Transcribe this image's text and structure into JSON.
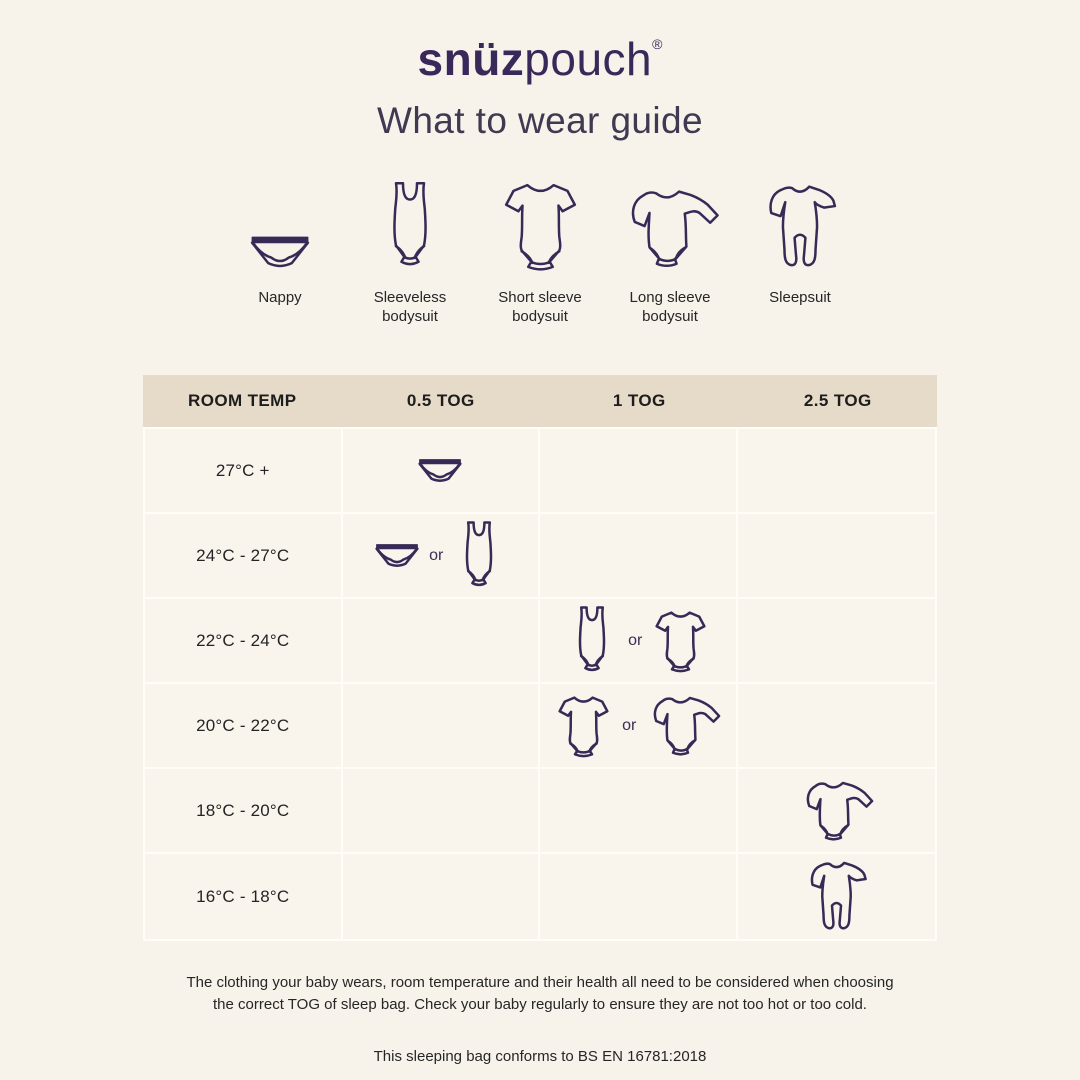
{
  "colors": {
    "page_background": "#f7f2ea",
    "accent_purple": "#372a56",
    "header_bar_background": "#e6dac8",
    "cell_background": "#f9f4ec",
    "grid_line": "#fffdf6",
    "text_dark": "#262626"
  },
  "logo": {
    "bold": "snüz",
    "regular": "pouch",
    "registered": "®"
  },
  "header": {
    "title": "What to wear guide"
  },
  "legend": {
    "items": [
      {
        "icon": "nappy",
        "label": "Nappy"
      },
      {
        "icon": "sleeveless-bodysuit",
        "label": "Sleeveless bodysuit"
      },
      {
        "icon": "short-sleeve-bodysuit",
        "label": "Short sleeve bodysuit"
      },
      {
        "icon": "long-sleeve-bodysuit",
        "label": "Long sleeve bodysuit"
      },
      {
        "icon": "sleepsuit",
        "label": "Sleepsuit"
      }
    ]
  },
  "table": {
    "columns": [
      "ROOM TEMP",
      "0.5 TOG",
      "1 TOG",
      "2.5 TOG"
    ],
    "or_label": "or",
    "rows": [
      {
        "temp": "27°C +",
        "tog_column": "0.5 TOG",
        "garments": [
          "nappy"
        ]
      },
      {
        "temp": "24°C - 27°C",
        "tog_column": "0.5 TOG",
        "garments": [
          "nappy",
          "sleeveless-bodysuit"
        ]
      },
      {
        "temp": "22°C - 24°C",
        "tog_column": "1 TOG",
        "garments": [
          "sleeveless-bodysuit",
          "short-sleeve-bodysuit"
        ]
      },
      {
        "temp": "20°C - 22°C",
        "tog_column": "1 TOG",
        "garments": [
          "short-sleeve-bodysuit",
          "long-sleeve-bodysuit"
        ]
      },
      {
        "temp": "18°C - 20°C",
        "tog_column": "2.5 TOG",
        "garments": [
          "long-sleeve-bodysuit"
        ]
      },
      {
        "temp": "16°C - 18°C",
        "tog_column": "2.5 TOG",
        "garments": [
          "sleepsuit"
        ]
      }
    ]
  },
  "footer": {
    "note_line1": "The clothing your baby wears, room temperature and their health all need to be considered when choosing",
    "note_line2": "the correct TOG of sleep bag. Check your baby regularly to ensure they are not too hot or too cold.",
    "conformity": "This sleeping bag conforms to BS EN 16781:2018"
  }
}
